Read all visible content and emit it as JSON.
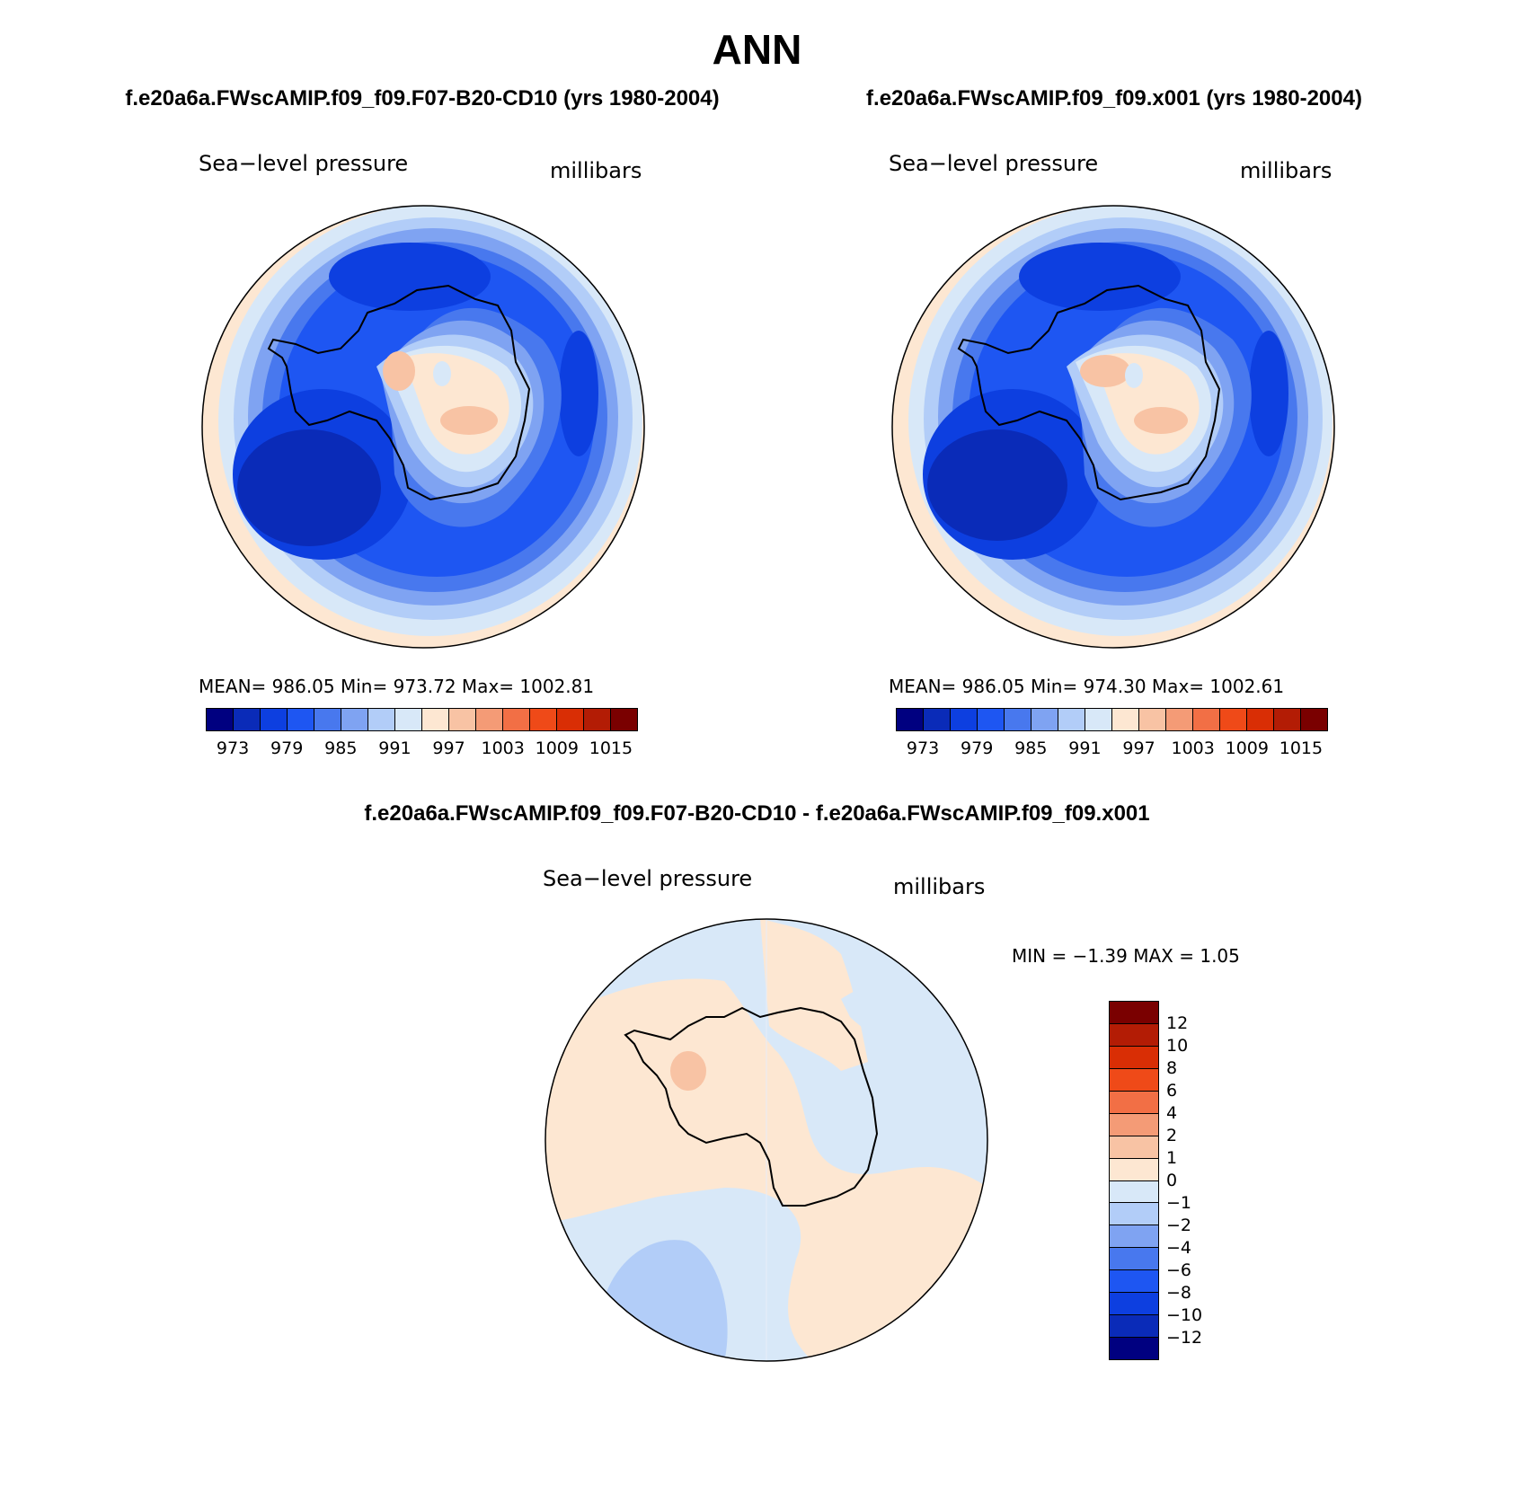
{
  "title": "ANN",
  "panels": {
    "left": {
      "case_title": "f.e20a6a.FWscAMIP.f09_f09.F07-B20-CD10 (yrs 1980-2004)",
      "variable": "Sea−level pressure",
      "units": "millibars",
      "stats": "MEAN= 986.05   Min= 973.72   Max= 1002.81"
    },
    "right": {
      "case_title": "f.e20a6a.FWscAMIP.f09_f09.x001 (yrs 1980-2004)",
      "variable": "Sea−level pressure",
      "units": "millibars",
      "stats": "MEAN= 986.05   Min= 974.30   Max= 1002.61"
    },
    "diff": {
      "case_title": "f.e20a6a.FWscAMIP.f09_f09.F07-B20-CD10 - f.e20a6a.FWscAMIP.f09_f09.x001",
      "variable": "Sea−level pressure",
      "units": "millibars",
      "stats": "MIN =   −1.39 MAX =    1.05"
    }
  },
  "colorbar_abs": {
    "colors": [
      "#000080",
      "#0a2bb8",
      "#0d3fe0",
      "#1e56f2",
      "#4878ee",
      "#7fa3f2",
      "#b2cdf8",
      "#d8e8f8",
      "#fde7d2",
      "#f8c3a4",
      "#f49b76",
      "#f26f45",
      "#ef4a18",
      "#d92e05",
      "#b31c05",
      "#7a0000"
    ],
    "tick_labels": [
      "973",
      "979",
      "985",
      "991",
      "997",
      "1003",
      "1009",
      "1015"
    ]
  },
  "colorbar_diff": {
    "colors": [
      "#7a0000",
      "#b31c05",
      "#d92e05",
      "#ef4a18",
      "#f26f45",
      "#f49b76",
      "#f8c3a4",
      "#fde7d2",
      "#d8e8f8",
      "#b2cdf8",
      "#7fa3f2",
      "#4878ee",
      "#1e56f2",
      "#0d3fe0",
      "#0a2bb8",
      "#000080"
    ],
    "tick_labels": [
      "12",
      "10",
      "8",
      "6",
      "4",
      "2",
      "1",
      "0",
      "−1",
      "−2",
      "−4",
      "−6",
      "−8",
      "−10",
      "−12"
    ]
  }
}
